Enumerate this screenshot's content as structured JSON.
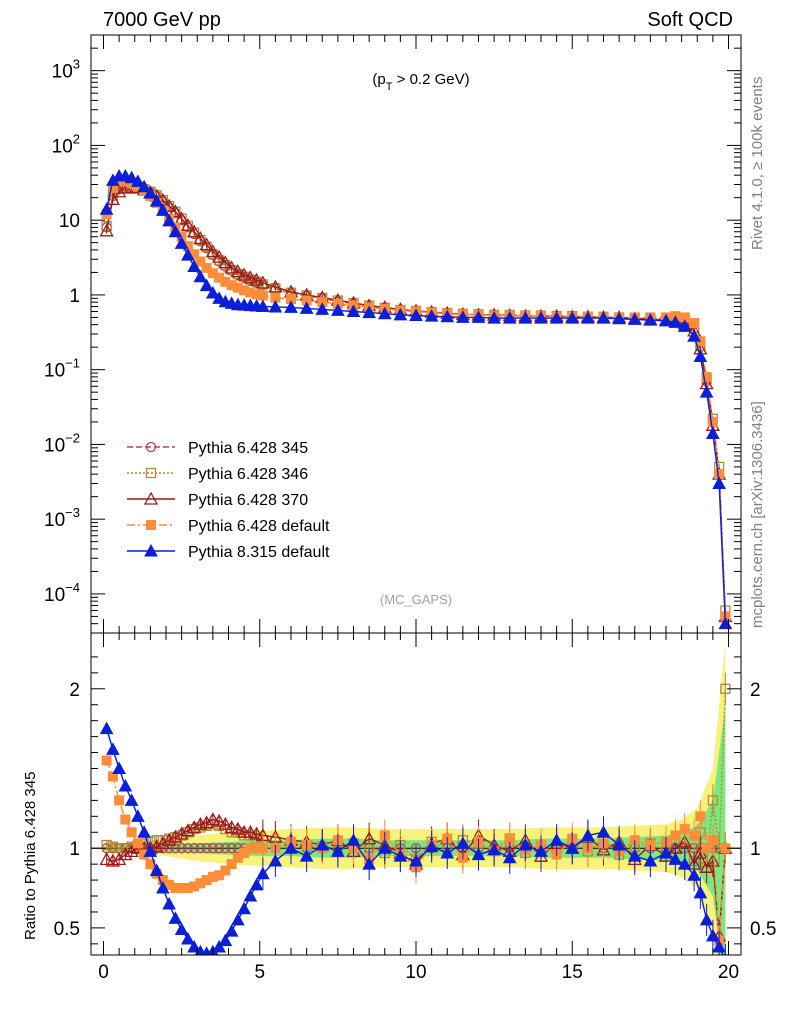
{
  "header": {
    "left": "7000 GeV pp",
    "right": "Soft QCD"
  },
  "side_labels": {
    "rivet": "Rivet 4.1.0, ≥ 100k events",
    "source": "mcplots.cern.ch [arXiv:1306.3436]"
  },
  "colors": {
    "p345": "#b5474e",
    "p346": "#b08a3a",
    "p370": "#9c1a1a",
    "pdef": "#ff8c38",
    "p8": "#0a1fd6",
    "band_yellow": "#f7f27a",
    "band_green": "#7ee67e"
  },
  "chart_data": [
    {
      "type": "line",
      "panel": "main",
      "title": "",
      "annotation": "(p_T > 0.2 GeV)",
      "watermark": "(MC_GAPS)",
      "xlabel": "",
      "ylabel": "",
      "xlim": [
        -0.4,
        20.4
      ],
      "ylim": [
        3e-05,
        3000
      ],
      "yscale": "log",
      "yticks": [
        {
          "v": 1000,
          "base": "10",
          "exp": "3"
        },
        {
          "v": 100,
          "base": "10",
          "exp": "2"
        },
        {
          "v": 10,
          "base": "10",
          "exp": ""
        },
        {
          "v": 1,
          "base": "1",
          "exp": ""
        },
        {
          "v": 0.1,
          "base": "10",
          "exp": "−1"
        },
        {
          "v": 0.01,
          "base": "10",
          "exp": "−2"
        },
        {
          "v": 0.001,
          "base": "10",
          "exp": "−3"
        },
        {
          "v": 0.0001,
          "base": "10",
          "exp": "−4"
        }
      ],
      "x": [
        0.1,
        0.3,
        0.5,
        0.7,
        0.9,
        1.1,
        1.3,
        1.5,
        1.7,
        1.9,
        2.1,
        2.3,
        2.5,
        2.7,
        2.9,
        3.1,
        3.3,
        3.5,
        3.7,
        3.9,
        4.1,
        4.3,
        4.5,
        4.7,
        4.9,
        5.1,
        5.5,
        6.0,
        6.5,
        7.0,
        7.5,
        8.0,
        8.5,
        9.0,
        9.5,
        10.0,
        10.5,
        11.0,
        11.5,
        12.0,
        12.5,
        13.0,
        13.5,
        14.0,
        14.5,
        15.0,
        15.5,
        16.0,
        16.5,
        17.0,
        17.5,
        18.0,
        18.3,
        18.6,
        18.9,
        19.1,
        19.3,
        19.5,
        19.7,
        19.9
      ],
      "series": [
        {
          "name": "Pythia 6.428 345",
          "key": "p345",
          "marker": "circle-open",
          "dash": "6,3",
          "values": [
            8,
            21,
            26,
            28,
            28,
            27,
            25.5,
            23.5,
            21,
            18,
            15,
            12.5,
            10,
            8,
            6.5,
            5.2,
            4.2,
            3.4,
            2.8,
            2.4,
            2.1,
            1.85,
            1.7,
            1.55,
            1.45,
            1.35,
            1.2,
            1.05,
            0.97,
            0.9,
            0.82,
            0.76,
            0.7,
            0.66,
            0.62,
            0.6,
            0.58,
            0.56,
            0.55,
            0.54,
            0.53,
            0.53,
            0.52,
            0.52,
            0.52,
            0.51,
            0.51,
            0.5,
            0.5,
            0.49,
            0.48,
            0.47,
            0.46,
            0.42,
            0.35,
            0.2,
            0.07,
            0.02,
            0.004,
            5e-05
          ]
        },
        {
          "name": "Pythia 6.428 346",
          "key": "p346",
          "marker": "square-open",
          "dash": "2,2",
          "values": [
            8.3,
            21.5,
            26.5,
            28.5,
            28.5,
            27.5,
            26,
            24,
            21.5,
            18.5,
            15.5,
            13,
            10.5,
            8.4,
            6.8,
            5.4,
            4.4,
            3.5,
            2.9,
            2.5,
            2.15,
            1.9,
            1.75,
            1.6,
            1.5,
            1.38,
            1.23,
            1.07,
            0.98,
            0.91,
            0.84,
            0.78,
            0.72,
            0.67,
            0.63,
            0.61,
            0.59,
            0.57,
            0.56,
            0.55,
            0.54,
            0.54,
            0.53,
            0.53,
            0.52,
            0.52,
            0.51,
            0.51,
            0.5,
            0.49,
            0.48,
            0.48,
            0.47,
            0.44,
            0.36,
            0.21,
            0.075,
            0.022,
            0.005,
            6e-05
          ]
        },
        {
          "name": "Pythia 6.428 370",
          "key": "p370",
          "marker": "triangle-open",
          "dash": "",
          "values": [
            7.2,
            19,
            24,
            27,
            27.5,
            27,
            25.5,
            23.5,
            21,
            18.5,
            15.5,
            13,
            10.5,
            8.5,
            7,
            5.7,
            4.7,
            3.8,
            3.2,
            2.7,
            2.3,
            2.05,
            1.85,
            1.7,
            1.58,
            1.45,
            1.28,
            1.1,
            1.0,
            0.92,
            0.85,
            0.78,
            0.72,
            0.68,
            0.64,
            0.61,
            0.59,
            0.57,
            0.55,
            0.54,
            0.54,
            0.53,
            0.52,
            0.52,
            0.52,
            0.51,
            0.51,
            0.5,
            0.5,
            0.48,
            0.47,
            0.46,
            0.45,
            0.41,
            0.33,
            0.19,
            0.065,
            0.018,
            0.004,
            5e-05
          ]
        },
        {
          "name": "Pythia 6.428 default",
          "key": "pdef",
          "marker": "square-filled",
          "dash": "8,3,2,3",
          "values": [
            12,
            27,
            33,
            33,
            31,
            28,
            24.5,
            21,
            17,
            13.5,
            10.5,
            8,
            6,
            4.5,
            3.5,
            2.8,
            2.3,
            1.95,
            1.7,
            1.5,
            1.35,
            1.25,
            1.15,
            1.08,
            1.02,
            0.98,
            0.92,
            0.88,
            0.84,
            0.8,
            0.76,
            0.72,
            0.68,
            0.65,
            0.62,
            0.6,
            0.58,
            0.56,
            0.55,
            0.54,
            0.53,
            0.53,
            0.52,
            0.52,
            0.51,
            0.51,
            0.51,
            0.5,
            0.5,
            0.5,
            0.5,
            0.5,
            0.52,
            0.5,
            0.42,
            0.24,
            0.08,
            0.02,
            0.004,
            5e-05
          ]
        },
        {
          "name": "Pythia 8.315 default",
          "key": "p8",
          "marker": "triangle-filled",
          "dash": "",
          "values": [
            14,
            34,
            39,
            39,
            37,
            33,
            28,
            23,
            18,
            13.5,
            9.8,
            7,
            4.9,
            3.4,
            2.4,
            1.75,
            1.33,
            1.06,
            0.9,
            0.81,
            0.77,
            0.74,
            0.73,
            0.72,
            0.71,
            0.7,
            0.69,
            0.68,
            0.66,
            0.64,
            0.62,
            0.6,
            0.58,
            0.56,
            0.54,
            0.53,
            0.52,
            0.51,
            0.5,
            0.5,
            0.49,
            0.49,
            0.49,
            0.49,
            0.49,
            0.49,
            0.49,
            0.49,
            0.48,
            0.47,
            0.46,
            0.45,
            0.43,
            0.38,
            0.28,
            0.15,
            0.05,
            0.014,
            0.003,
            4e-05
          ]
        }
      ]
    },
    {
      "type": "line",
      "panel": "ratio",
      "ylabel": "Ratio to Pythia 6.428 345",
      "xlabel": "",
      "xlim": [
        -0.4,
        20.4
      ],
      "ylim": [
        0.33,
        2.35
      ],
      "yticks": [
        0.5,
        1,
        2
      ],
      "xticks": [
        0,
        5,
        10,
        15,
        20
      ],
      "reference": 1,
      "band": {
        "x": [
          0,
          1,
          2,
          3,
          4,
          5,
          6,
          7,
          8,
          9,
          10,
          11,
          12,
          13,
          14,
          15,
          16,
          17,
          18,
          18.5,
          19,
          19.5,
          19.9
        ],
        "yellow_halfwidth": [
          0.03,
          0.03,
          0.05,
          0.08,
          0.1,
          0.11,
          0.12,
          0.13,
          0.13,
          0.12,
          0.12,
          0.12,
          0.12,
          0.12,
          0.13,
          0.13,
          0.13,
          0.14,
          0.15,
          0.18,
          0.25,
          0.5,
          1.3
        ],
        "green_halfwidth": [
          0.01,
          0.01,
          0.02,
          0.03,
          0.04,
          0.05,
          0.05,
          0.06,
          0.06,
          0.05,
          0.05,
          0.05,
          0.05,
          0.05,
          0.06,
          0.06,
          0.06,
          0.07,
          0.08,
          0.1,
          0.14,
          0.3,
          0.9
        ]
      },
      "series": [
        {
          "key": "p346",
          "values": [
            1.02,
            1.01,
            1.0,
            1.0,
            1.01,
            1.02,
            1.03,
            1.04,
            1.05,
            1.05,
            1.06,
            1.07,
            1.08,
            1.1,
            1.12,
            1.13,
            1.14,
            1.15,
            1.14,
            1.12,
            1.1,
            1.1,
            1.08,
            1.08,
            1.06,
            1.05,
            1.04,
            1.03,
            1.02,
            1.01,
            0.98,
            1.03,
            1.0,
            0.97,
            1.02,
            0.93,
            1.04,
            1.0,
            1.05,
            1.03,
            0.99,
            1.06,
            0.97,
            1.02,
            1.0,
            1.04,
            0.98,
            1.06,
            0.96,
            1.01,
            1.03,
            0.98,
            1.05,
            1.0,
            0.92,
            1.1,
            0.88,
            1.3,
            1.0,
            2.0
          ]
        },
        {
          "key": "p370",
          "values": [
            0.93,
            0.92,
            0.93,
            0.96,
            0.98,
            1.0,
            1.0,
            1.0,
            1.01,
            1.03,
            1.05,
            1.07,
            1.09,
            1.11,
            1.13,
            1.15,
            1.16,
            1.18,
            1.17,
            1.15,
            1.13,
            1.12,
            1.1,
            1.1,
            1.09,
            1.08,
            1.07,
            1.05,
            1.04,
            1.02,
            1.05,
            0.98,
            1.06,
            1.02,
            0.97,
            0.9,
            1.03,
            1.06,
            0.96,
            1.08,
            1.02,
            0.98,
            1.05,
            0.95,
            1.03,
            1.0,
            1.07,
            0.99,
            1.04,
            0.93,
            1.02,
            0.95,
            1.0,
            1.04,
            0.9,
            0.97,
            0.88,
            0.92,
            0.45,
            1.0
          ]
        },
        {
          "key": "pdef",
          "values": [
            1.55,
            1.45,
            1.3,
            1.18,
            1.1,
            1.03,
            0.96,
            0.9,
            0.84,
            0.8,
            0.77,
            0.75,
            0.75,
            0.75,
            0.76,
            0.78,
            0.8,
            0.82,
            0.83,
            0.86,
            0.9,
            0.94,
            0.97,
            1.0,
            1.0,
            1.0,
            1.0,
            1.04,
            1.02,
            1.0,
            1.05,
            1.0,
            0.93,
            1.08,
            0.96,
            0.88,
            1.02,
            1.06,
            0.94,
            1.04,
            0.98,
            1.05,
            0.99,
            1.02,
            0.96,
            1.06,
            1.0,
            1.03,
            0.98,
            1.05,
            1.02,
            1.04,
            1.08,
            1.12,
            1.08,
            1.2,
            1.0,
            1.05,
            0.42,
            1.0
          ]
        },
        {
          "key": "p8",
          "values": [
            1.75,
            1.62,
            1.5,
            1.39,
            1.3,
            1.2,
            1.1,
            0.98,
            0.86,
            0.75,
            0.65,
            0.56,
            0.49,
            0.43,
            0.38,
            0.35,
            0.34,
            0.35,
            0.38,
            0.42,
            0.48,
            0.55,
            0.62,
            0.7,
            0.77,
            0.84,
            0.92,
            1.0,
            0.95,
            1.02,
            0.98,
            1.05,
            0.9,
            1.0,
            0.95,
            0.92,
            1.01,
            0.97,
            1.03,
            0.96,
            0.99,
            0.94,
            1.02,
            0.98,
            1.05,
            1.0,
            1.08,
            1.1,
            1.02,
            0.95,
            0.92,
            0.97,
            0.93,
            0.9,
            0.83,
            0.72,
            0.55,
            0.45,
            0.38,
            0.3
          ]
        }
      ]
    }
  ]
}
